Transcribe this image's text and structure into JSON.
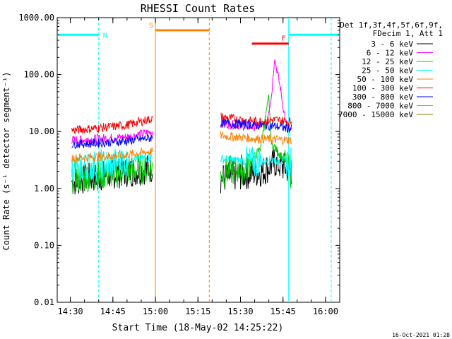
{
  "chart_data": {
    "type": "line",
    "title": "RHESSI Count Rates",
    "ylabel": "Count Rate (s⁻¹ detector segment⁻¹)",
    "xlabel": "Start Time (18-May-02 14:25:22)",
    "footer": "16-Oct-2021 01:28",
    "yscale": "log",
    "ylim": [
      0.01,
      1000
    ],
    "y_ticks": [
      0.01,
      0.1,
      1,
      10,
      100,
      1000
    ],
    "y_tick_labels": [
      "0.01",
      "0.10",
      "1.00",
      "10.00",
      "100.00",
      "1000.00"
    ],
    "xlim": [
      "14:25:22",
      "16:05:00"
    ],
    "x_ticks": [
      "14:30",
      "14:45",
      "15:00",
      "15:15",
      "15:30",
      "15:45",
      "16:00"
    ],
    "grid": false,
    "legend": {
      "position": "top-right",
      "header_1": "Det 1f,3f,4f,5f,6f,9f,",
      "header_2": "FDecim 1, Att 1"
    },
    "series": [
      {
        "name": "3 - 6 keV",
        "color": "#000000",
        "x": [
          "14:30:30",
          "14:36",
          "14:45",
          "14:52",
          "14:59",
          "15:23",
          "15:30",
          "15:38",
          "15:42",
          "15:45",
          "15:48"
        ],
        "values": [
          1.3,
          1.5,
          1.8,
          2.0,
          2.3,
          1.5,
          1.7,
          2.0,
          2.8,
          2.4,
          2.0
        ]
      },
      {
        "name": "6 - 12 keV",
        "color": "#ff00ff",
        "x": [
          "14:30:30",
          "14:40",
          "14:50",
          "14:59",
          "15:23",
          "15:35",
          "15:39",
          "15:41",
          "15:42",
          "15:44",
          "15:46",
          "15:48"
        ],
        "values": [
          7.0,
          7.5,
          8.0,
          10.0,
          14.0,
          12.0,
          13.0,
          45.0,
          200.0,
          60.0,
          14.0,
          10.0
        ]
      },
      {
        "name": "12 - 25 keV",
        "color": "#00cc00",
        "x": [
          "14:30:30",
          "14:40",
          "14:50",
          "14:59",
          "15:23",
          "15:32",
          "15:37",
          "15:40",
          "15:41",
          "15:44",
          "15:48"
        ],
        "values": [
          1.5,
          1.7,
          2.0,
          2.3,
          1.9,
          2.3,
          5.0,
          40.0,
          6.0,
          4.0,
          1.8
        ]
      },
      {
        "name": "25 - 50 keV",
        "color": "#00ffff",
        "x": [
          "14:30:30",
          "14:40",
          "14:50",
          "14:59",
          "15:23",
          "15:35",
          "15:42",
          "15:48"
        ],
        "values": [
          2.2,
          2.6,
          3.0,
          3.6,
          3.3,
          2.9,
          3.2,
          2.9
        ]
      },
      {
        "name": "50 - 100 keV",
        "color": "#ff8000",
        "x": [
          "14:30:30",
          "14:40",
          "14:50",
          "14:59",
          "15:23",
          "15:35",
          "15:42",
          "15:48"
        ],
        "values": [
          3.4,
          3.6,
          3.9,
          4.5,
          8.5,
          7.5,
          7.3,
          7.0
        ]
      },
      {
        "name": "100 - 300 keV",
        "color": "#ff0000",
        "x": [
          "14:30:30",
          "14:40",
          "14:50",
          "14:59",
          "15:23",
          "15:35",
          "15:42",
          "15:48"
        ],
        "values": [
          10.5,
          11.5,
          13.0,
          17.0,
          18.0,
          15.0,
          16.0,
          15.0
        ]
      },
      {
        "name": "300 - 800 keV",
        "color": "#0000ff",
        "x": [
          "14:30:30",
          "14:40",
          "14:50",
          "14:59",
          "15:23",
          "15:35",
          "15:42",
          "15:48"
        ],
        "values": [
          6.0,
          6.3,
          6.8,
          7.8,
          14.0,
          13.0,
          12.5,
          11.0
        ]
      },
      {
        "name": "800 - 7000 keV",
        "color": "#cc9900",
        "x": [],
        "values": []
      },
      {
        "name": "7000 - 15000 keV",
        "color": "#808000",
        "x": [],
        "values": []
      }
    ],
    "annotations": [
      {
        "label": "N",
        "color": "#00ffff",
        "start": "14:25:22",
        "end": "14:40:00",
        "level": 500
      },
      {
        "label": "S",
        "color": "#ff8000",
        "start": "15:00:00",
        "end": "15:19:00",
        "level": 600
      },
      {
        "label": "F",
        "color": "#ff0000",
        "start": "15:34:00",
        "end": "15:47:00",
        "level": 350
      },
      {
        "label": "",
        "color": "#00ffff",
        "start": "15:47:00",
        "end": "16:05:00",
        "level": 500
      }
    ],
    "vertical_lines": [
      {
        "time": "14:40:00",
        "color": "#00ffff",
        "style": "dashed"
      },
      {
        "time": "15:00:00",
        "color": "#ff8000",
        "style": "solid"
      },
      {
        "time": "15:19:00",
        "color": "#ff8000",
        "style": "dashed"
      },
      {
        "time": "15:47:00",
        "color": "#00ffff",
        "style": "solid"
      },
      {
        "time": "16:02:00",
        "color": "#00ffff",
        "style": "dashed"
      }
    ]
  }
}
